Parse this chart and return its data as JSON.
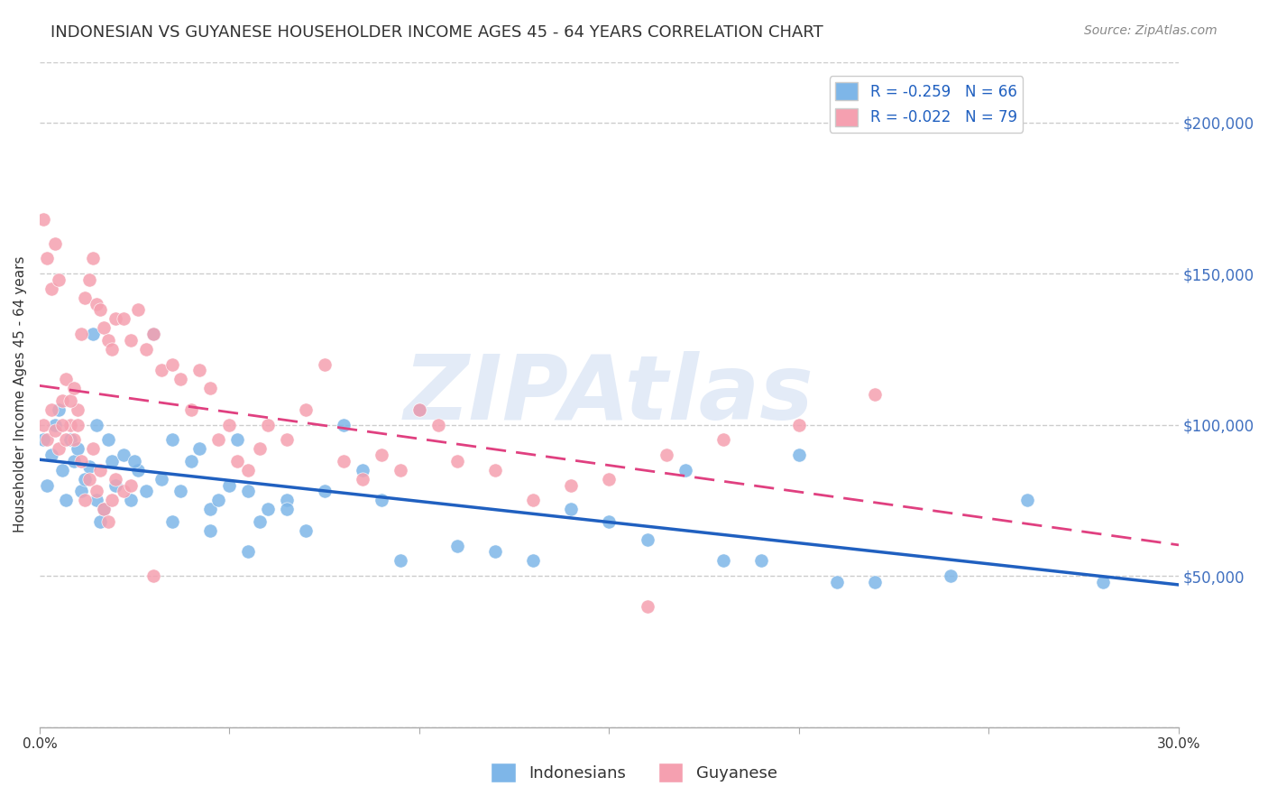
{
  "title": "INDONESIAN VS GUYANESE HOUSEHOLDER INCOME AGES 45 - 64 YEARS CORRELATION CHART",
  "source": "Source: ZipAtlas.com",
  "ylabel": "Householder Income Ages 45 - 64 years",
  "xlim": [
    0.0,
    0.3
  ],
  "ylim": [
    0,
    220000
  ],
  "xticks": [
    0.0,
    0.05,
    0.1,
    0.15,
    0.2,
    0.25,
    0.3
  ],
  "xticklabels": [
    "0.0%",
    "",
    "",
    "",
    "",
    "",
    "30.0%"
  ],
  "yticks_right": [
    50000,
    100000,
    150000,
    200000
  ],
  "ytick_labels_right": [
    "$50,000",
    "$100,000",
    "$150,000",
    "$200,000"
  ],
  "indonesian_color": "#7EB6E8",
  "guyanese_color": "#F5A0B0",
  "indonesian_line_color": "#2060C0",
  "guyanese_line_color": "#E04080",
  "R_indonesian": -0.259,
  "N_indonesian": 66,
  "R_guyanese": -0.022,
  "N_guyanese": 79,
  "watermark": "ZIPAtlas",
  "watermark_color": "#C8D8F0",
  "title_fontsize": 13,
  "source_fontsize": 10,
  "background_color": "#FFFFFF",
  "indonesian_x": [
    0.001,
    0.002,
    0.003,
    0.004,
    0.005,
    0.006,
    0.007,
    0.008,
    0.009,
    0.01,
    0.011,
    0.012,
    0.013,
    0.014,
    0.015,
    0.016,
    0.017,
    0.018,
    0.019,
    0.02,
    0.022,
    0.024,
    0.026,
    0.028,
    0.03,
    0.032,
    0.035,
    0.037,
    0.04,
    0.042,
    0.045,
    0.047,
    0.05,
    0.052,
    0.055,
    0.058,
    0.06,
    0.065,
    0.07,
    0.075,
    0.08,
    0.085,
    0.09,
    0.095,
    0.1,
    0.11,
    0.12,
    0.13,
    0.14,
    0.15,
    0.16,
    0.17,
    0.18,
    0.19,
    0.2,
    0.21,
    0.22,
    0.24,
    0.26,
    0.28,
    0.015,
    0.025,
    0.035,
    0.045,
    0.055,
    0.065
  ],
  "indonesian_y": [
    95000,
    80000,
    90000,
    100000,
    105000,
    85000,
    75000,
    95000,
    88000,
    92000,
    78000,
    82000,
    86000,
    130000,
    75000,
    68000,
    72000,
    95000,
    88000,
    80000,
    90000,
    75000,
    85000,
    78000,
    130000,
    82000,
    95000,
    78000,
    88000,
    92000,
    72000,
    75000,
    80000,
    95000,
    78000,
    68000,
    72000,
    75000,
    65000,
    78000,
    100000,
    85000,
    75000,
    55000,
    105000,
    60000,
    58000,
    55000,
    72000,
    68000,
    62000,
    85000,
    55000,
    55000,
    90000,
    48000,
    48000,
    50000,
    75000,
    48000,
    100000,
    88000,
    68000,
    65000,
    58000,
    72000
  ],
  "guyanese_x": [
    0.001,
    0.002,
    0.003,
    0.004,
    0.005,
    0.006,
    0.007,
    0.008,
    0.009,
    0.01,
    0.011,
    0.012,
    0.013,
    0.014,
    0.015,
    0.016,
    0.017,
    0.018,
    0.019,
    0.02,
    0.022,
    0.024,
    0.026,
    0.028,
    0.03,
    0.032,
    0.035,
    0.037,
    0.04,
    0.042,
    0.045,
    0.047,
    0.05,
    0.052,
    0.055,
    0.058,
    0.06,
    0.065,
    0.07,
    0.075,
    0.08,
    0.085,
    0.09,
    0.095,
    0.1,
    0.105,
    0.11,
    0.12,
    0.13,
    0.14,
    0.15,
    0.16,
    0.001,
    0.002,
    0.003,
    0.004,
    0.005,
    0.006,
    0.007,
    0.008,
    0.009,
    0.01,
    0.011,
    0.012,
    0.013,
    0.014,
    0.015,
    0.016,
    0.017,
    0.018,
    0.019,
    0.02,
    0.022,
    0.024,
    0.03,
    0.165,
    0.18,
    0.2,
    0.22
  ],
  "guyanese_y": [
    100000,
    95000,
    105000,
    98000,
    92000,
    108000,
    115000,
    100000,
    95000,
    105000,
    130000,
    142000,
    148000,
    155000,
    140000,
    138000,
    132000,
    128000,
    125000,
    135000,
    135000,
    128000,
    138000,
    125000,
    130000,
    118000,
    120000,
    115000,
    105000,
    118000,
    112000,
    95000,
    100000,
    88000,
    85000,
    92000,
    100000,
    95000,
    105000,
    120000,
    88000,
    82000,
    90000,
    85000,
    105000,
    100000,
    88000,
    85000,
    75000,
    80000,
    82000,
    40000,
    168000,
    155000,
    145000,
    160000,
    148000,
    100000,
    95000,
    108000,
    112000,
    100000,
    88000,
    75000,
    82000,
    92000,
    78000,
    85000,
    72000,
    68000,
    75000,
    82000,
    78000,
    80000,
    50000,
    90000,
    95000,
    100000,
    110000
  ]
}
